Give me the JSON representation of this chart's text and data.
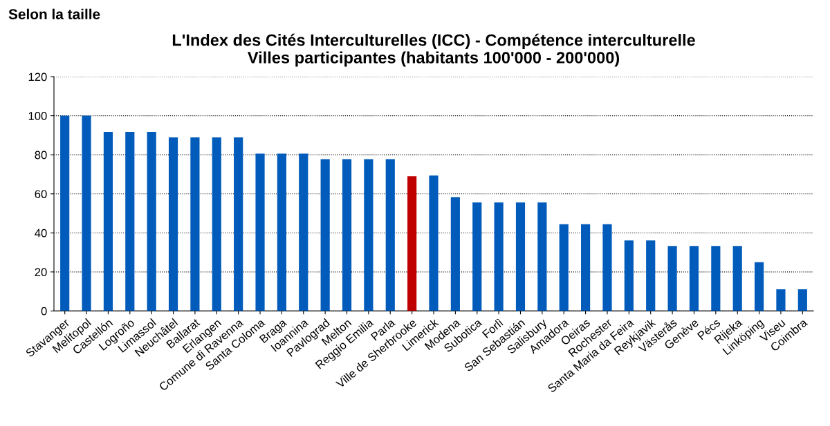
{
  "chart_data": {
    "type": "bar",
    "title": "L'Index des Cités Interculturelles (ICC) - Compétence interculturelle\nVilles participantes (habitants 100'000 - 200'000)",
    "annotations": [
      "Selon la taille"
    ],
    "categories": [
      "Stavanger",
      "Melitopol",
      "Castellón",
      "Logroño",
      "Limassol",
      "Neuchâtel",
      "Ballarat",
      "Erlangen",
      "Comune di Ravenna",
      "Santa Coloma",
      "Braga",
      "Ioannina",
      "Pavlograd",
      "Melton",
      "Reggio Emilia",
      "Parla",
      "Ville de Sherbrooke",
      "Limerick",
      "Modena",
      "Subotica",
      "Forlì",
      "San Sebastián",
      "Salisbury",
      "Amadora",
      "Oeiras",
      "Rochester",
      "Santa Maria da Feira",
      "Reykjavik",
      "Västerås",
      "Genève",
      "Pécs",
      "Rijeka",
      "Linköping",
      "Viseu",
      "Coimbra"
    ],
    "values": [
      100,
      100,
      91.7,
      91.7,
      91.7,
      88.9,
      88.9,
      88.9,
      88.9,
      80.6,
      80.6,
      80.6,
      77.8,
      77.8,
      77.8,
      77.8,
      69,
      69.4,
      58.3,
      55.6,
      55.6,
      55.6,
      55.6,
      44.4,
      44.4,
      44.4,
      36.1,
      36.1,
      33.3,
      33.3,
      33.3,
      33.3,
      25,
      11.1,
      11.1
    ],
    "colors": [
      "#005bbb",
      "#005bbb",
      "#005bbb",
      "#005bbb",
      "#005bbb",
      "#005bbb",
      "#005bbb",
      "#005bbb",
      "#005bbb",
      "#005bbb",
      "#005bbb",
      "#005bbb",
      "#005bbb",
      "#005bbb",
      "#005bbb",
      "#005bbb",
      "#c00000",
      "#005bbb",
      "#005bbb",
      "#005bbb",
      "#005bbb",
      "#005bbb",
      "#005bbb",
      "#005bbb",
      "#005bbb",
      "#005bbb",
      "#005bbb",
      "#005bbb",
      "#005bbb",
      "#005bbb",
      "#005bbb",
      "#005bbb",
      "#005bbb",
      "#005bbb",
      "#005bbb"
    ],
    "ylim": [
      0,
      120
    ],
    "yticks": [
      0,
      20,
      40,
      60,
      80,
      100,
      120
    ],
    "grid": "y",
    "legend": false
  }
}
